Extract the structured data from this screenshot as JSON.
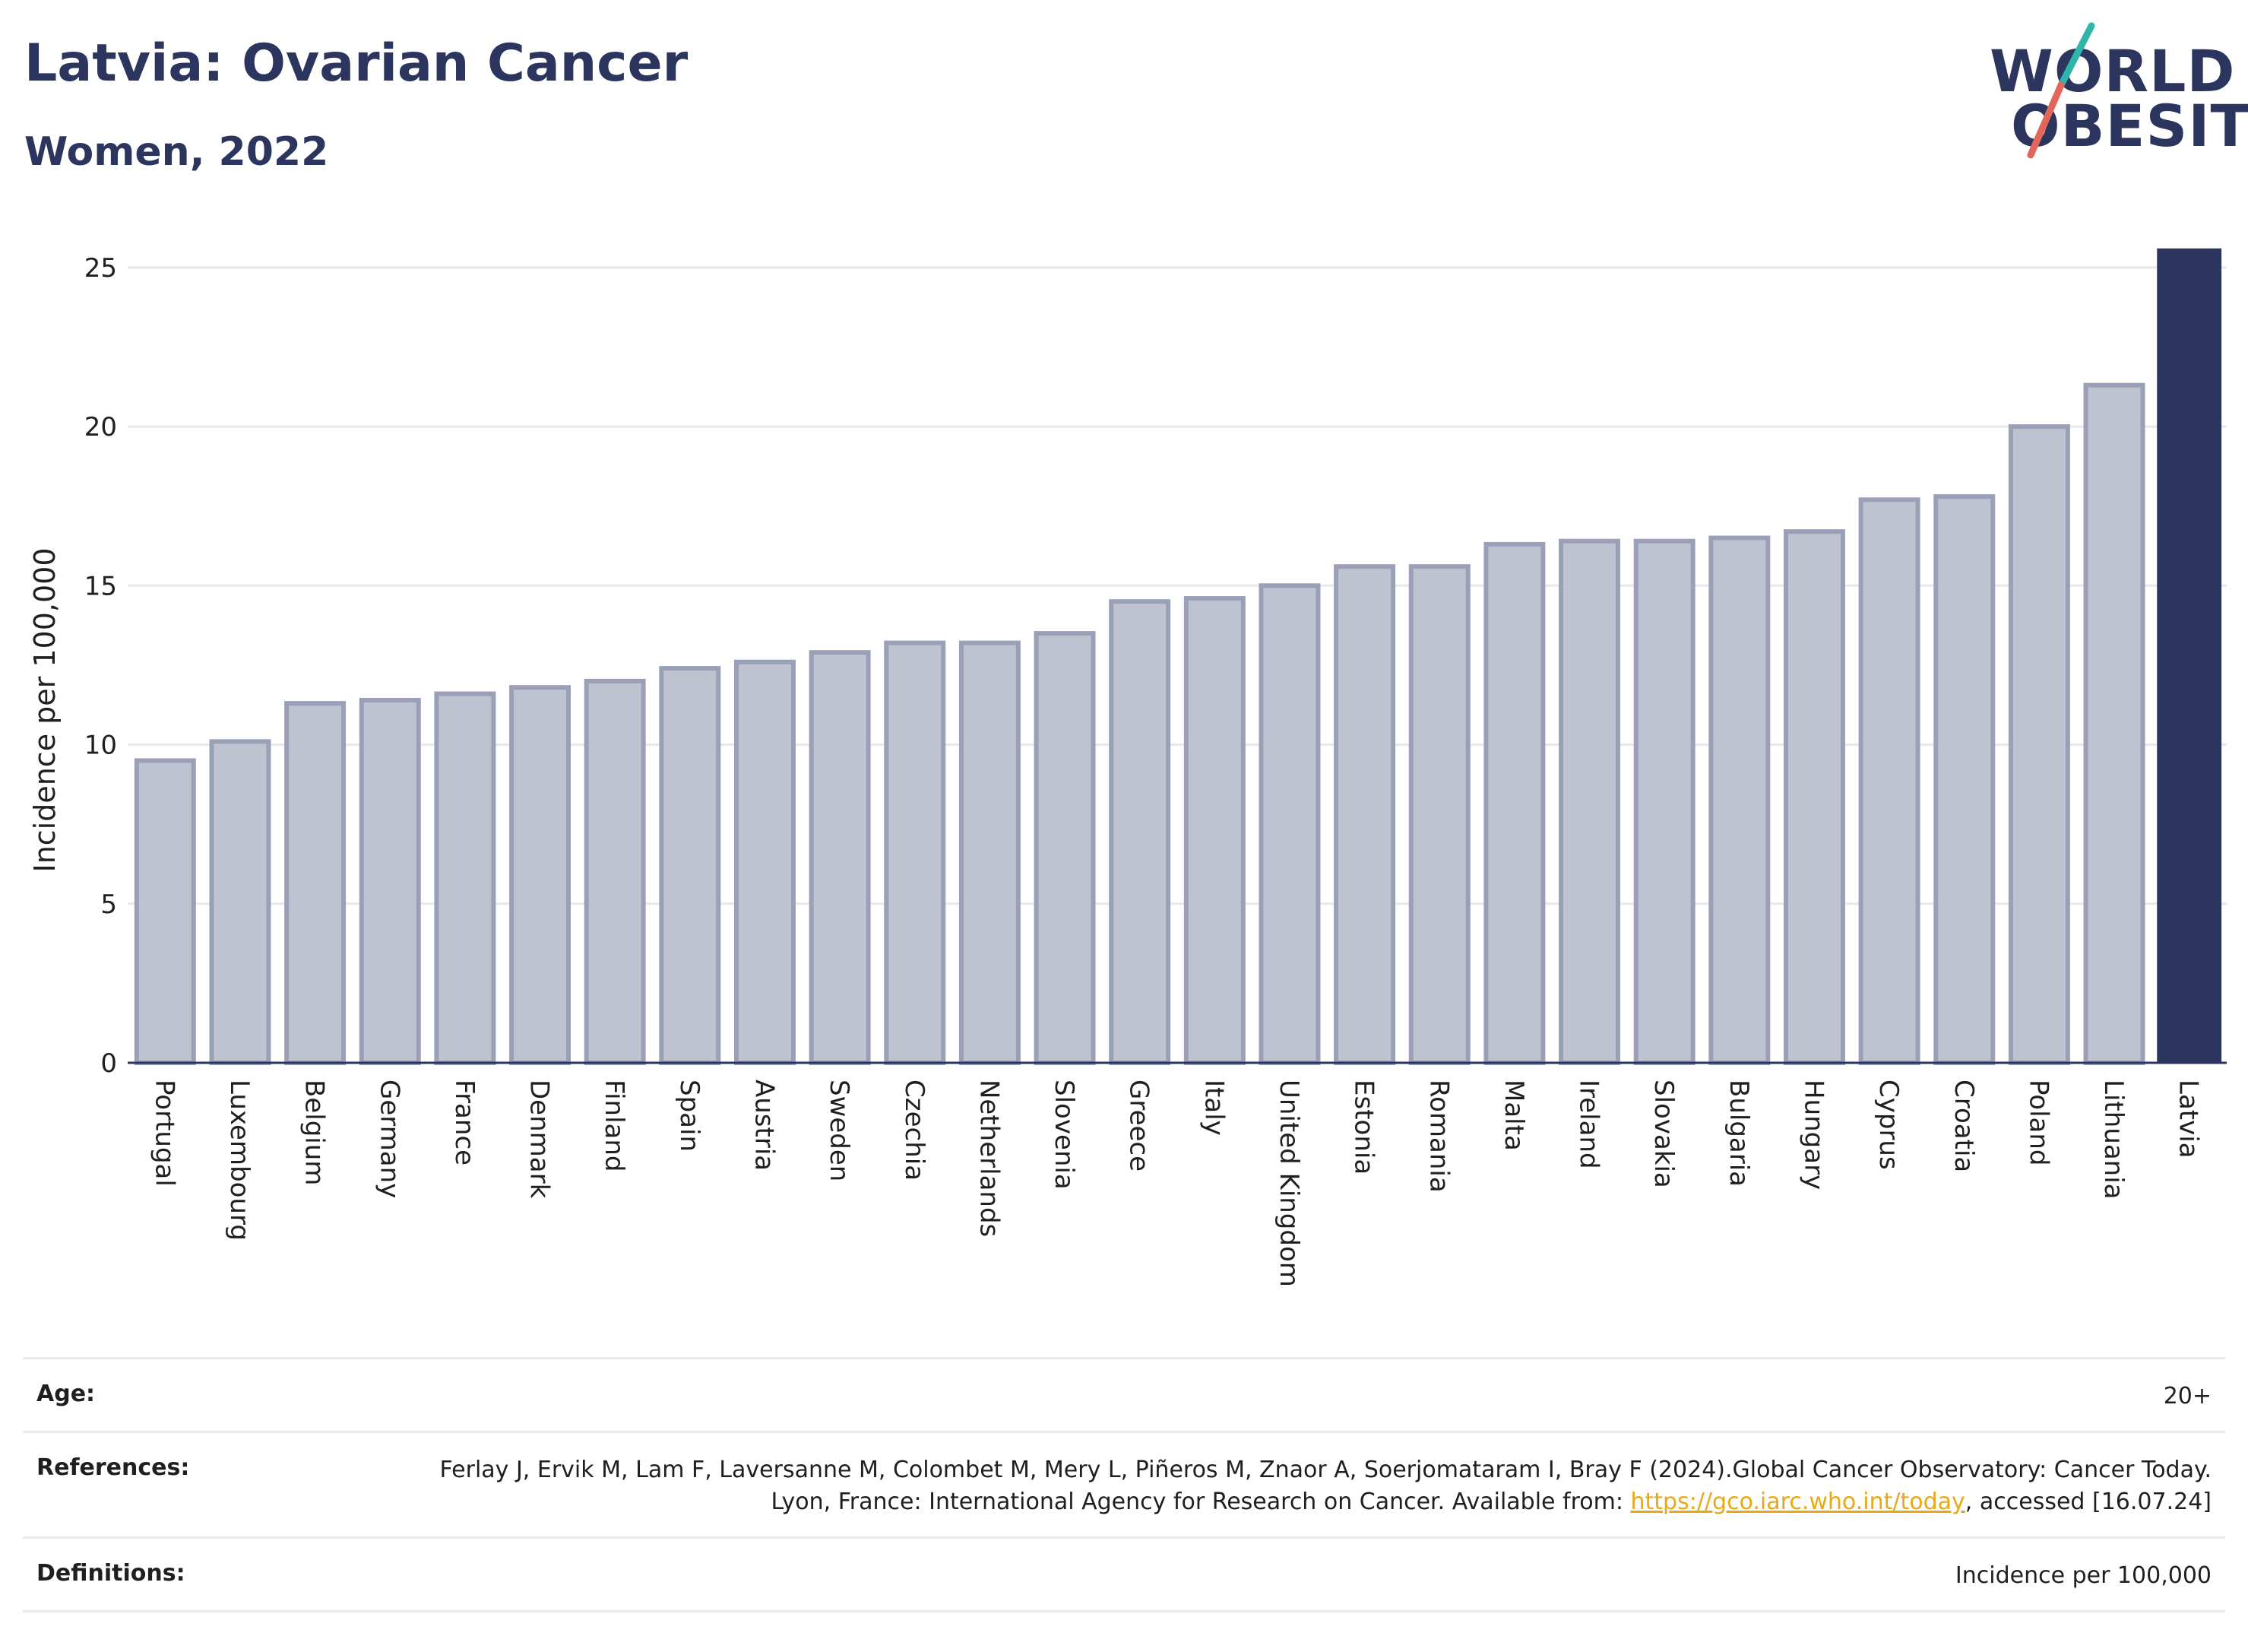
{
  "header": {
    "title": "Latvia: Ovarian Cancer",
    "subtitle": "Women, 2022"
  },
  "logo": {
    "line1": "WORLD",
    "line2": "OBESITY",
    "slash_colors": [
      "#2fb5a9",
      "#e2665a"
    ]
  },
  "colors": {
    "highlight_bar": "#2b355e",
    "other_bar_fill": "#bfc2cf",
    "other_bar_stroke": "#9aa0b8",
    "grid": "#e6e8ec",
    "axis": "#2b355e"
  },
  "chart_data": {
    "type": "bar",
    "title": "Latvia: Ovarian Cancer",
    "subtitle": "Women, 2022",
    "xlabel": "",
    "ylabel": "Incidence per 100,000",
    "ylim": [
      0,
      26
    ],
    "yticks": [
      0,
      5,
      10,
      15,
      20,
      25
    ],
    "grid": true,
    "highlight": "Latvia",
    "categories": [
      "Portugal",
      "Luxembourg",
      "Belgium",
      "Germany",
      "France",
      "Denmark",
      "Finland",
      "Spain",
      "Austria",
      "Sweden",
      "Czechia",
      "Netherlands",
      "Slovenia",
      "Greece",
      "Italy",
      "United Kingdom",
      "Estonia",
      "Romania",
      "Malta",
      "Ireland",
      "Slovakia",
      "Bulgaria",
      "Hungary",
      "Cyprus",
      "Croatia",
      "Poland",
      "Lithuania",
      "Latvia"
    ],
    "values": [
      9.5,
      10.1,
      11.3,
      11.4,
      11.6,
      11.8,
      12.0,
      12.4,
      12.6,
      12.9,
      13.2,
      13.2,
      13.5,
      14.5,
      14.6,
      15.0,
      15.6,
      15.6,
      16.3,
      16.4,
      16.4,
      16.5,
      16.7,
      17.7,
      17.8,
      20.0,
      21.3,
      25.6
    ]
  },
  "footer": {
    "age_label": "Age:",
    "age_value": "20+",
    "references_label": "References:",
    "references_text_1": "Ferlay J, Ervik M, Lam F, Laversanne M, Colombet M, Mery L, Piñeros M, Znaor A, Soerjomataram I, Bray F (2024).Global Cancer Observatory: Cancer Today. Lyon, France: International Agency for Research on Cancer. Available from: ",
    "references_link": "https://gco.iarc.who.int/today",
    "references_text_2": ", accessed [16.07.24]",
    "definitions_label": "Definitions:",
    "definitions_value": "Incidence per 100,000"
  }
}
